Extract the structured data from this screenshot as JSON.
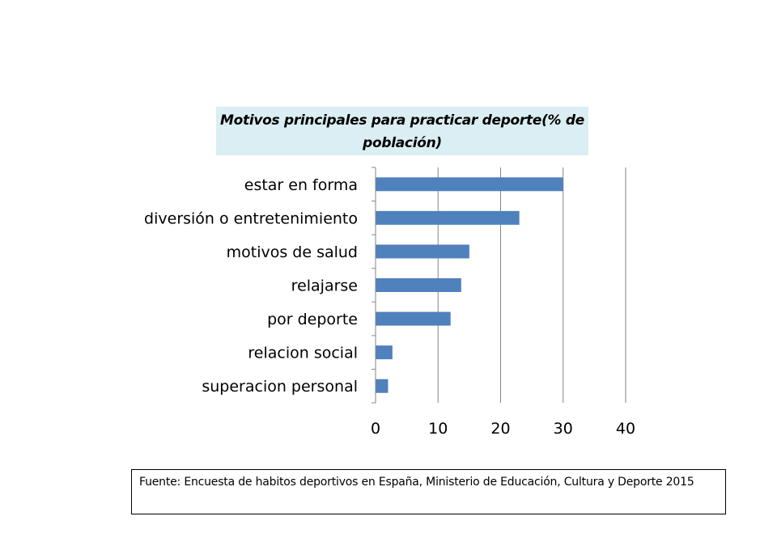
{
  "chart_data": {
    "type": "bar",
    "orientation": "horizontal",
    "title": "Motivos principales para practicar deporte(% de población)",
    "categories": [
      "estar en forma",
      "diversión o entretenimiento",
      "motivos de salud",
      "relajarse",
      "por deporte",
      "relacion social",
      "superacion personal"
    ],
    "values": [
      30,
      23,
      15,
      13.7,
      12,
      2.7,
      2
    ],
    "xlim": [
      0,
      40
    ],
    "xticks": [
      0,
      10,
      20,
      30,
      40
    ],
    "grid": "vertical",
    "bar_color": "#4f81bd"
  },
  "source": {
    "text": "Fuente: Encuesta de habitos  deportivos en España, Ministerio de Educación, Cultura y Deporte 2015"
  }
}
